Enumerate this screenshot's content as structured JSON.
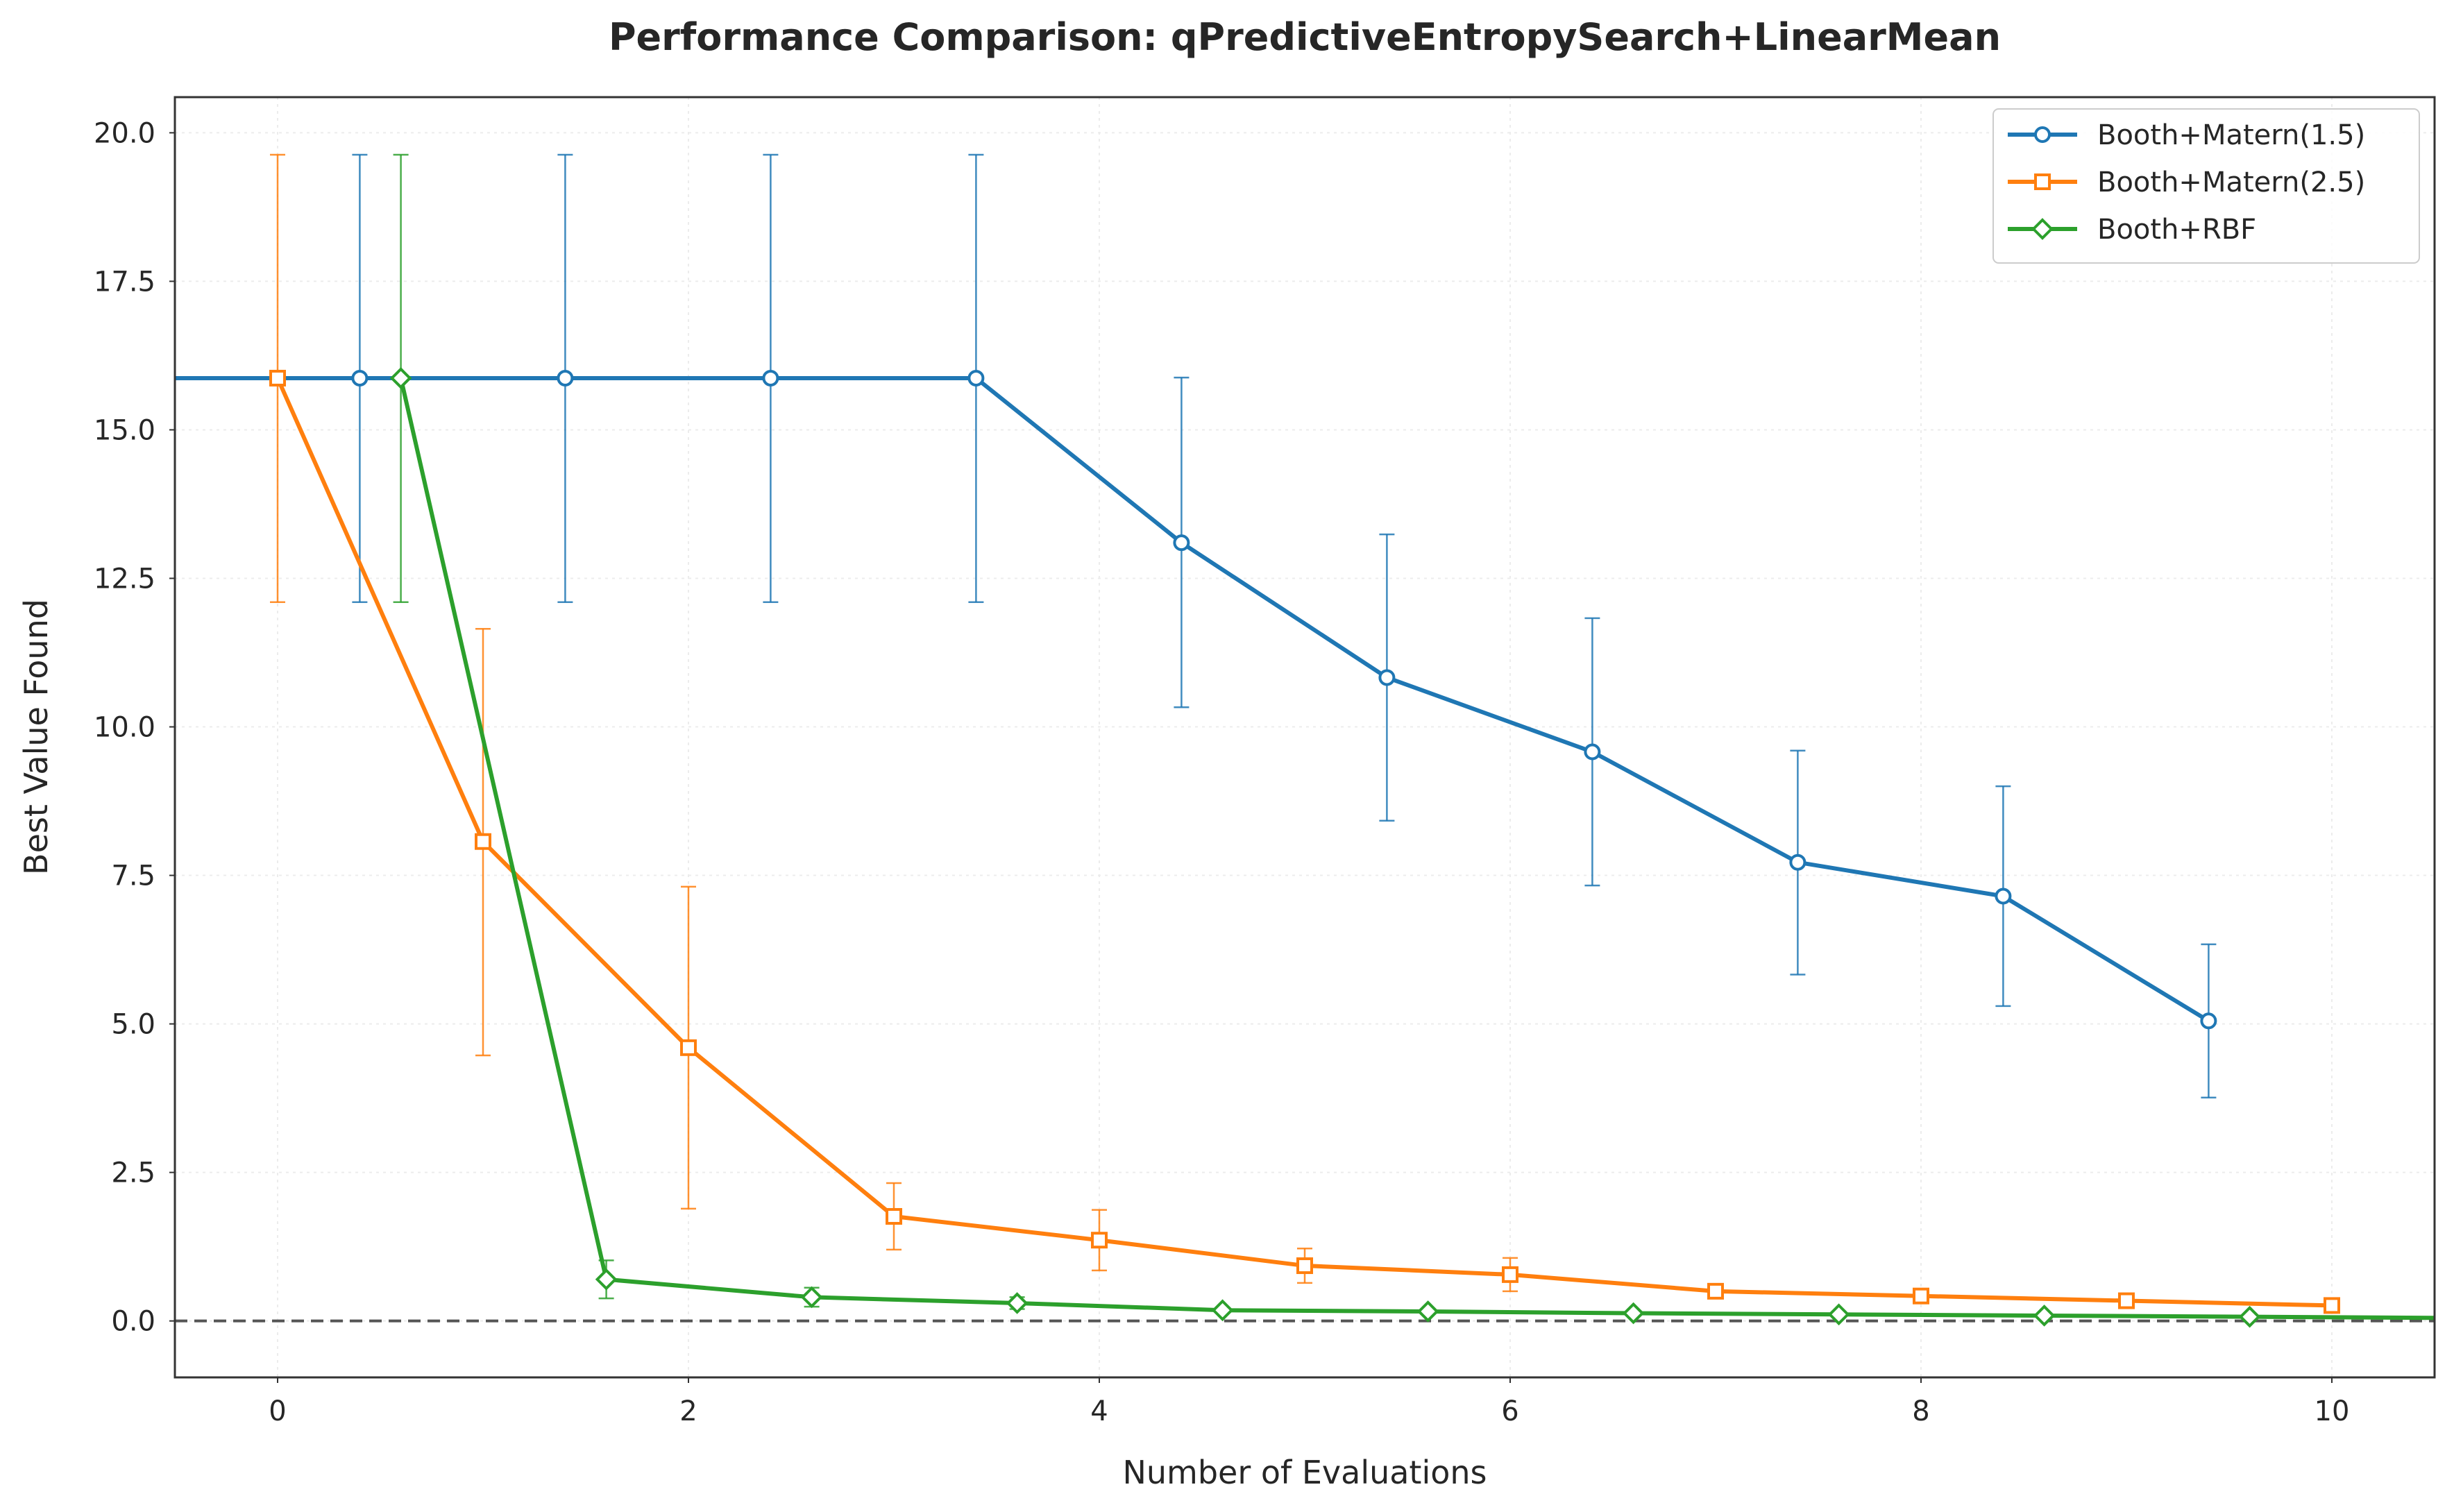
{
  "chart_data": {
    "type": "line",
    "title": "Performance Comparison: qPredictiveEntropySearch+LinearMean",
    "xlabel": "Number of Evaluations",
    "ylabel": "Best Value Found",
    "xlim": [
      -0.5,
      10.5
    ],
    "ylim": [
      -0.95,
      20.6
    ],
    "x_ticks": [
      0,
      2,
      4,
      6,
      8,
      10
    ],
    "x_tick_labels": [
      "0",
      "2",
      "4",
      "6",
      "8",
      "10"
    ],
    "y_ticks": [
      0,
      2.5,
      5,
      7.5,
      10,
      12.5,
      15,
      17.5,
      20
    ],
    "y_tick_labels": [
      "0.0",
      "2.5",
      "5.0",
      "7.5",
      "10.0",
      "12.5",
      "15.0",
      "17.5",
      "20.0"
    ],
    "grid": true,
    "reference_line": {
      "y": 0,
      "style": "dashed",
      "color": "#555555"
    },
    "legend_position": "top-right",
    "series": [
      {
        "name": "Booth+Matern(1.5)",
        "color": "#1f77b4",
        "marker": "circle",
        "x": [
          -0.6,
          0.4,
          1.4,
          2.4,
          3.4,
          4.4,
          5.4,
          6.4,
          7.4,
          8.4,
          9.4
        ],
        "y": [
          15.87,
          15.87,
          15.87,
          15.87,
          15.87,
          13.1,
          10.83,
          9.58,
          7.72,
          7.15,
          5.05
        ],
        "err_low": [
          12.1,
          12.1,
          12.1,
          12.1,
          12.1,
          10.33,
          8.42,
          7.33,
          5.83,
          5.3,
          3.76
        ],
        "err_high": [
          19.63,
          19.63,
          19.63,
          19.63,
          19.63,
          15.88,
          13.24,
          11.83,
          9.6,
          9.0,
          6.34
        ]
      },
      {
        "name": "Booth+Matern(2.5)",
        "color": "#ff7f0e",
        "marker": "square",
        "x": [
          0,
          1,
          2,
          3,
          4,
          5,
          6,
          7,
          8,
          9,
          10
        ],
        "y": [
          15.87,
          8.07,
          4.6,
          1.76,
          1.36,
          0.93,
          0.78,
          0.5,
          0.42,
          0.34,
          0.26
        ],
        "err_low": [
          12.1,
          4.47,
          1.89,
          1.2,
          0.85,
          0.64,
          0.5,
          0.5,
          0.42,
          0.34,
          0.26
        ],
        "err_high": [
          19.63,
          11.65,
          7.31,
          2.32,
          1.87,
          1.22,
          1.06,
          0.5,
          0.42,
          0.34,
          0.26
        ]
      },
      {
        "name": "Booth+RBF",
        "color": "#2ca02c",
        "marker": "diamond",
        "x": [
          0.6,
          1.6,
          2.6,
          3.6,
          4.6,
          5.6,
          6.6,
          7.6,
          8.6,
          9.6,
          10.6
        ],
        "y": [
          15.87,
          0.7,
          0.4,
          0.3,
          0.18,
          0.16,
          0.13,
          0.11,
          0.09,
          0.07,
          0.05
        ],
        "err_low": [
          12.1,
          0.38,
          0.24,
          0.2,
          0.18,
          0.16,
          0.13,
          0.11,
          0.09,
          0.07,
          0.05
        ],
        "err_high": [
          19.63,
          1.02,
          0.56,
          0.4,
          0.18,
          0.16,
          0.13,
          0.11,
          0.09,
          0.07,
          0.05
        ]
      }
    ]
  }
}
